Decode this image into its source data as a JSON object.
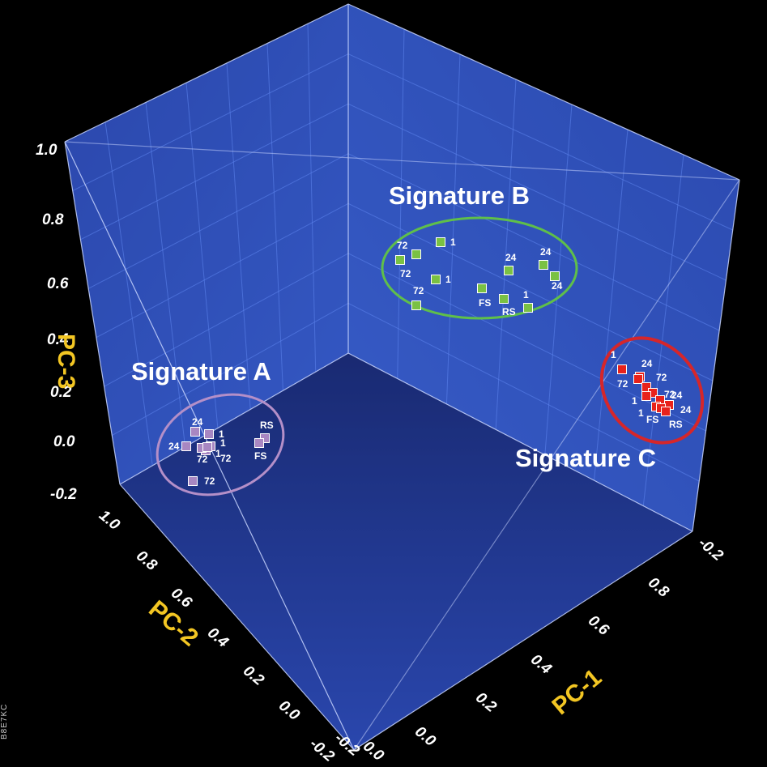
{
  "chart_data": {
    "type": "scatter",
    "dimensions": 3,
    "axes": {
      "x": {
        "title": "PC-1",
        "ticks": [
          "-0.2",
          "0.0",
          "0.2",
          "0.4",
          "0.6",
          "0.8"
        ]
      },
      "y": {
        "title": "PC-2",
        "ticks": [
          "-0.2",
          "0.0",
          "0.2",
          "0.4",
          "0.6",
          "0.8",
          "1.0"
        ]
      },
      "z": {
        "title": "PC-3",
        "ticks": [
          "-0.2",
          "0.0",
          "0.2",
          "0.4",
          "0.6",
          "0.8",
          "1.0"
        ]
      }
    },
    "grid": true,
    "clusters": [
      {
        "name": "Signature A",
        "color": "#a887c2",
        "ring_color": "#b48fc8",
        "points": [
          "24",
          "24",
          "1",
          "1",
          "1",
          "72",
          "72",
          "72",
          "RS",
          "FS"
        ]
      },
      {
        "name": "Signature B",
        "color": "#7ac143",
        "ring_color": "#5fbf4a",
        "points": [
          "72",
          "72",
          "1",
          "1",
          "72",
          "24",
          "24",
          "24",
          "FS",
          "RS",
          "1"
        ]
      },
      {
        "name": "Signature C",
        "color": "#e8221b",
        "ring_color": "#d6262a",
        "points": [
          "1",
          "24",
          "72",
          "72",
          "72",
          "1",
          "24",
          "1",
          "24",
          "FS",
          "RS"
        ]
      }
    ]
  },
  "side_code": "B8E7KC"
}
